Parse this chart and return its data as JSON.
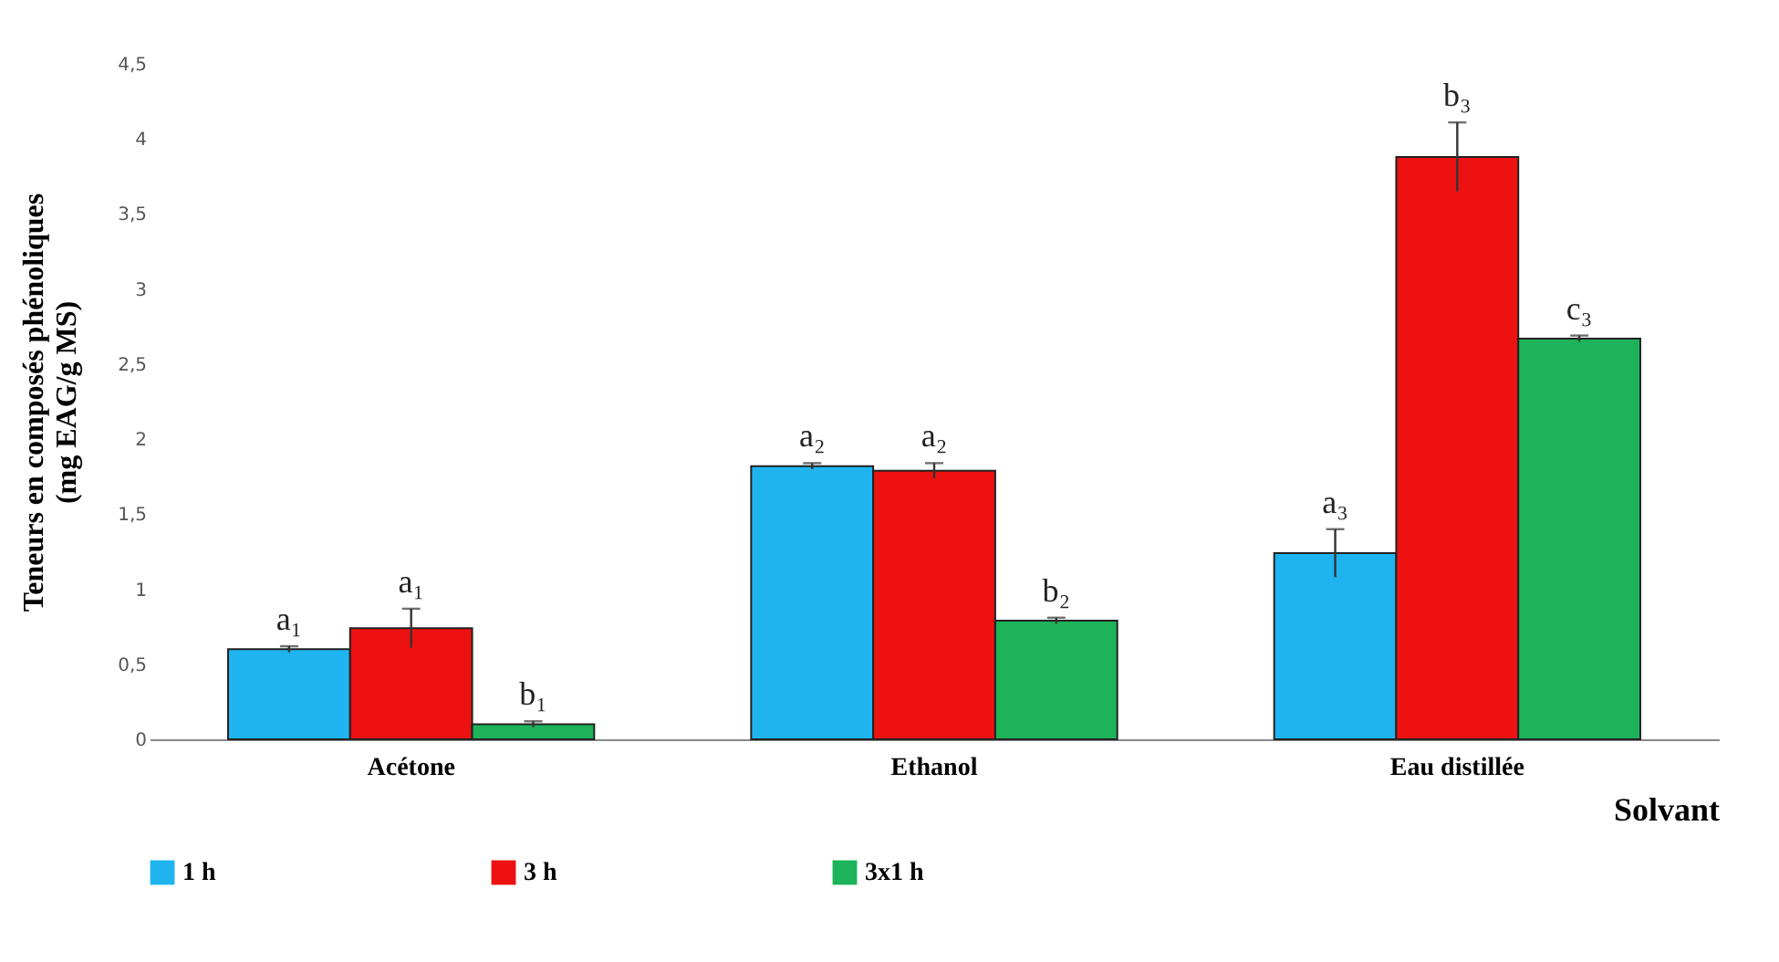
{
  "chart_data": {
    "type": "bar",
    "xlabel": "Solvant",
    "ylabel": "Teneurs en composés phénoliques\n(mg EAG/g MS)",
    "categories": [
      "Acétone",
      "Ethanol",
      "Eau distillée"
    ],
    "ylim": [
      0,
      4.5
    ],
    "yticks": [
      0,
      {
        "value": 0.5,
        "label": "0,5"
      },
      1,
      {
        "value": 1.5,
        "label": "1,5"
      },
      2,
      {
        "value": 2.5,
        "label": "2,5"
      },
      3,
      {
        "value": 3.5,
        "label": "3,5"
      },
      4,
      {
        "value": 4.5,
        "label": "4,5"
      }
    ],
    "legend": "bottom",
    "grid": false,
    "series": [
      {
        "name": "1 h",
        "color": "#1fb4f0",
        "values": [
          0.6,
          1.82,
          1.24
        ],
        "errors": [
          0.02,
          0.02,
          0.16
        ],
        "value_labels": [
          "a₁",
          "a₂",
          "a₃"
        ]
      },
      {
        "name": "3 h",
        "color": "#ee1111",
        "values": [
          0.74,
          1.79,
          3.88
        ],
        "errors": [
          0.13,
          0.05,
          0.23
        ],
        "value_labels": [
          "a₁",
          "a₂",
          "b₃"
        ]
      },
      {
        "name": "3x1 h",
        "color": "#1db35a",
        "values": [
          0.1,
          0.79,
          2.67
        ],
        "errors": [
          0.02,
          0.02,
          0.02
        ],
        "value_labels": [
          "b₁",
          "b₂",
          "c₃"
        ]
      }
    ]
  }
}
